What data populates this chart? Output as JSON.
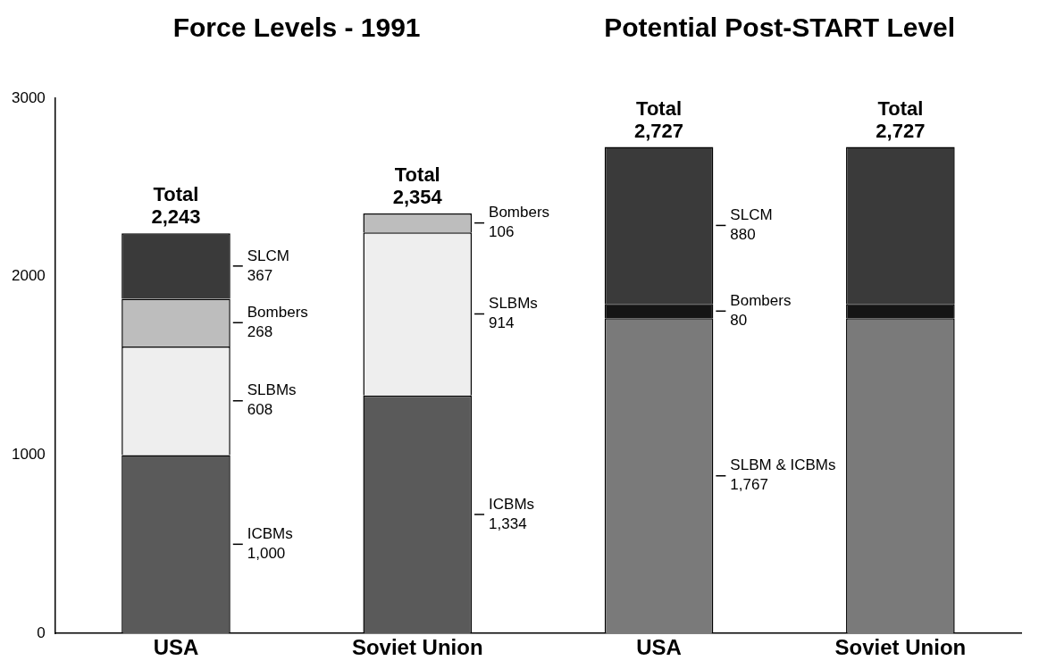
{
  "chart_data": {
    "type": "bar",
    "title": "Force Levels - 1991",
    "subtitle": "Potential Post-START Level",
    "categories": [
      "USA",
      "Soviet Union",
      "USA",
      "Soviet Union"
    ],
    "stacked": true,
    "series": [
      {
        "name": "ICBMs",
        "color": "#5a5a5a",
        "values": [
          1000,
          1334,
          null,
          null
        ],
        "value_labels": [
          "1,000",
          "1,334",
          null,
          null
        ]
      },
      {
        "name": "SLBMs",
        "color": "#eeeeee",
        "values": [
          608,
          914,
          null,
          null
        ],
        "value_labels": [
          "608",
          "914",
          null,
          null
        ]
      },
      {
        "name": "SLBM & ICBMs",
        "color": "#7a7a7a",
        "values": [
          null,
          null,
          1767,
          1767
        ],
        "value_labels": [
          null,
          null,
          "1,767",
          null
        ]
      },
      {
        "name": "Bombers",
        "colors": [
          "#bdbdbd",
          "#bdbdbd",
          "#151515",
          "#151515"
        ],
        "values": [
          268,
          106,
          80,
          80
        ],
        "value_labels": [
          "268",
          "106",
          "80",
          null
        ]
      },
      {
        "name": "SLCM",
        "color": "#3a3a3a",
        "values": [
          367,
          null,
          880,
          880
        ],
        "value_labels": [
          "367",
          null,
          "880",
          null
        ]
      }
    ],
    "totals": [
      "Total\n2,243",
      "Total\n2,354",
      "Total\n2,727",
      "Total\n2,727"
    ],
    "ylim": [
      0,
      3000
    ],
    "yticks": [
      0,
      1000,
      2000,
      3000
    ],
    "grid": false,
    "legend": false
  }
}
